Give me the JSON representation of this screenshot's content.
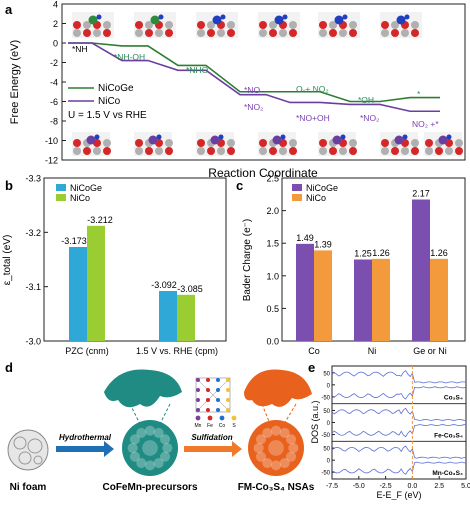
{
  "colors": {
    "nicoge_line": "#2e7d32",
    "nico_line": "#6a3fa0",
    "label_green": "#2e8b57",
    "label_purple": "#7a3fb0",
    "bar_blue": "#2fa8d8",
    "bar_green": "#9acd32",
    "bar_purple": "#7b4fb0",
    "bar_orange": "#f39a3c",
    "dos_line": "#5b6fd6",
    "fermi": "#f39a3c",
    "arrow_blue": "#1f6fb5",
    "arrow_orange": "#f07a2a",
    "teal": "#1f8b83",
    "orange_shape": "#e8621d"
  },
  "panel_labels": {
    "a": "a",
    "b": "b",
    "c": "c",
    "d": "d",
    "e": "e"
  },
  "chart_data": [
    {
      "panel": "a",
      "type": "line",
      "xlabel": "Reaction Coordinate",
      "ylabel": "Free Energy (eV)",
      "ylim": [
        -12,
        4
      ],
      "yticks": [
        4,
        2,
        0,
        -2,
        -4,
        -6,
        -8,
        -10,
        -12
      ],
      "legend_placement": "left",
      "annotation": "U = 1.5 V vs RHE",
      "series": [
        {
          "name": "NiCoGe",
          "steps": [
            0,
            -0.3,
            -2.3,
            -5.0,
            -5.0,
            -6.0,
            -5.6
          ]
        },
        {
          "name": "NiCo",
          "steps": [
            0,
            -1.8,
            -2.8,
            -5.3,
            -6.1,
            -6.3,
            -7.0
          ]
        }
      ],
      "step_labels": [
        "*NH",
        "*NH-OH",
        "*NHO",
        "*NO",
        "*NO₂",
        "Oᵥ+ NO₂",
        "*NO+OH",
        "*OH",
        "*NO₂",
        "*",
        "NO₂ +*"
      ]
    },
    {
      "panel": "b",
      "type": "bar",
      "ylabel": "ε_total (eV)",
      "ylim": [
        -3.0,
        -3.3
      ],
      "yticks": [
        "-3.0",
        "-3.1",
        "-3.2",
        "-3.3"
      ],
      "legend_placement": "top-left",
      "categories": [
        "PZC (cnm)",
        "1.5 V vs. RHE (cpm)"
      ],
      "series": [
        {
          "name": "NiCoGe",
          "values": [
            -3.173,
            -3.092
          ],
          "labels": [
            "-3.173",
            "-3.092"
          ]
        },
        {
          "name": "NiCo",
          "values": [
            -3.212,
            -3.085
          ],
          "labels": [
            "-3.212",
            "-3.085"
          ]
        }
      ]
    },
    {
      "panel": "c",
      "type": "bar",
      "ylabel": "Bader Charge (e⁻)",
      "ylim": [
        0,
        2.5
      ],
      "yticks": [
        "0.0",
        "0.5",
        "1.0",
        "1.5",
        "2.0",
        "2.5"
      ],
      "legend_placement": "top-left",
      "categories": [
        "Co",
        "Ni",
        "Ge or Ni"
      ],
      "series": [
        {
          "name": "NiCoGe",
          "values": [
            1.49,
            1.25,
            2.17
          ],
          "labels": [
            "1.49",
            "1.25",
            "2.17"
          ]
        },
        {
          "name": "NiCo",
          "values": [
            1.39,
            1.26,
            1.26
          ],
          "labels": [
            "1.39",
            "1.26",
            "1.26"
          ]
        }
      ]
    },
    {
      "panel": "e",
      "type": "line",
      "xlabel": "E-E_F (eV)",
      "ylabel": "DOS (a.u.)",
      "xlim": [
        -7.5,
        5.0
      ],
      "xticks": [
        "-7.5",
        "-5.0",
        "-2.5",
        "0.0",
        "2.5",
        "5.0"
      ],
      "yticks": [
        "50",
        "0",
        "-50"
      ],
      "series": [
        {
          "name": "Co₃S₄"
        },
        {
          "name": "Fe-Co₃S₄"
        },
        {
          "name": "Mn-Co₃S₄"
        }
      ]
    }
  ],
  "schematic": {
    "ni_foam": "Ni foam",
    "hydrothermal": "Hydrothermal",
    "sulfidation": "Sulfidation",
    "precursors": "CoFeMn-precursors",
    "product": "FM-Co₃S₄ NSAs",
    "elements": [
      "Mn",
      "Fe",
      "Co",
      "S"
    ]
  }
}
